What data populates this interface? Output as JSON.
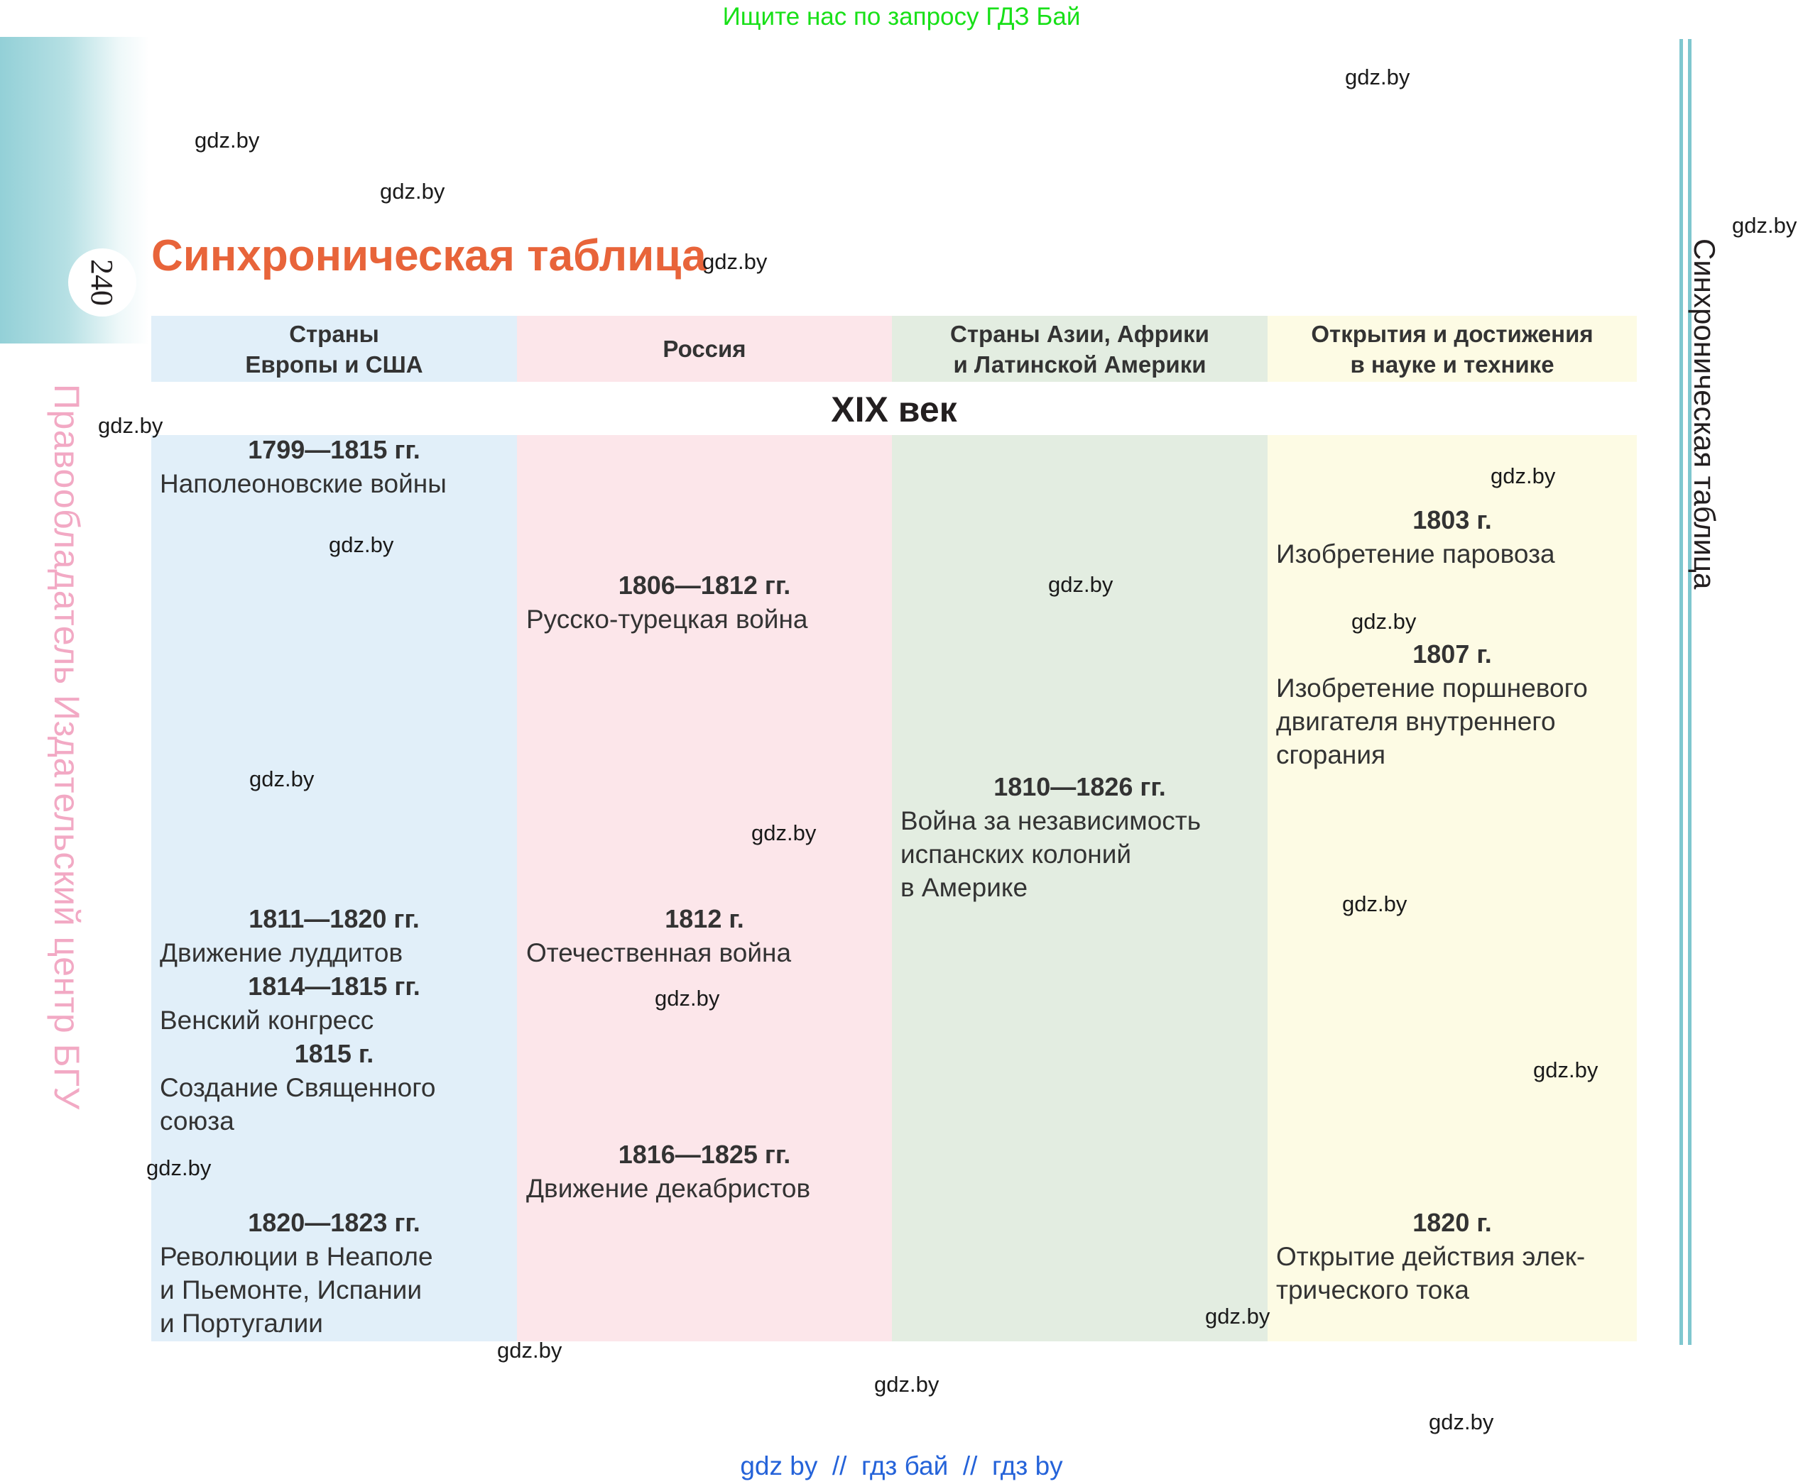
{
  "top_banner": "Ищите нас по запросу ГДЗ Бай",
  "page_number": "240",
  "copyright_vertical": "Правообладатель Издательский центр БГУ",
  "side_title_vertical": "Синхроническая таблица",
  "title": "Синхроническая таблица",
  "colors": {
    "title": "#e8643a",
    "col_europe": "#e1eff9",
    "col_russia": "#fce6ea",
    "col_asia": "#e3ede1",
    "col_science": "#fdfbe4",
    "accent_line": "#7fc7cf",
    "banner_green": "#18e018",
    "footer_blue": "#2563d9"
  },
  "columns": {
    "europe": "Страны\nЕвропы и США",
    "russia": "Россия",
    "asia": "Страны Азии, Африки\nи Латинской Америки",
    "science": "Открытия и достижения\nв науке и технике"
  },
  "century": "XIX век",
  "events": {
    "europe": [
      {
        "date": "1799—1815 гг.",
        "text": "Наполеоновские войны"
      },
      {
        "date": "1811—1820 гг.",
        "text": "Движение луддитов"
      },
      {
        "date": "1814—1815 гг.",
        "text": "Венский конгресс"
      },
      {
        "date": "1815 г.",
        "text": "Создание Священного\nсоюза"
      },
      {
        "date": "1820—1823 гг.",
        "text": "Революции в Неаполе\nи Пьемонте, Испании\nи Португалии"
      }
    ],
    "russia": [
      {
        "date": "1806—1812 гг.",
        "text": "Русско-турецкая война"
      },
      {
        "date": "1812 г.",
        "text": "Отечественная война"
      },
      {
        "date": "1816—1825 гг.",
        "text": "Движение декабристов"
      }
    ],
    "asia": [
      {
        "date": "1810—1826 гг.",
        "text": "Война за независимость\nиспанских колоний\nв Америке"
      }
    ],
    "science": [
      {
        "date": "1803 г.",
        "text": "Изобретение паровоза"
      },
      {
        "date": "1807 г.",
        "text": "Изобретение поршневого\nдвигателя внутреннего\nсгорания"
      },
      {
        "date": "1820 г.",
        "text": "Открытие действия элек-\nтрического тока"
      }
    ]
  },
  "watermark": "gdz.by",
  "footer": "gdz by  //  гдз бай  //  гдз by"
}
